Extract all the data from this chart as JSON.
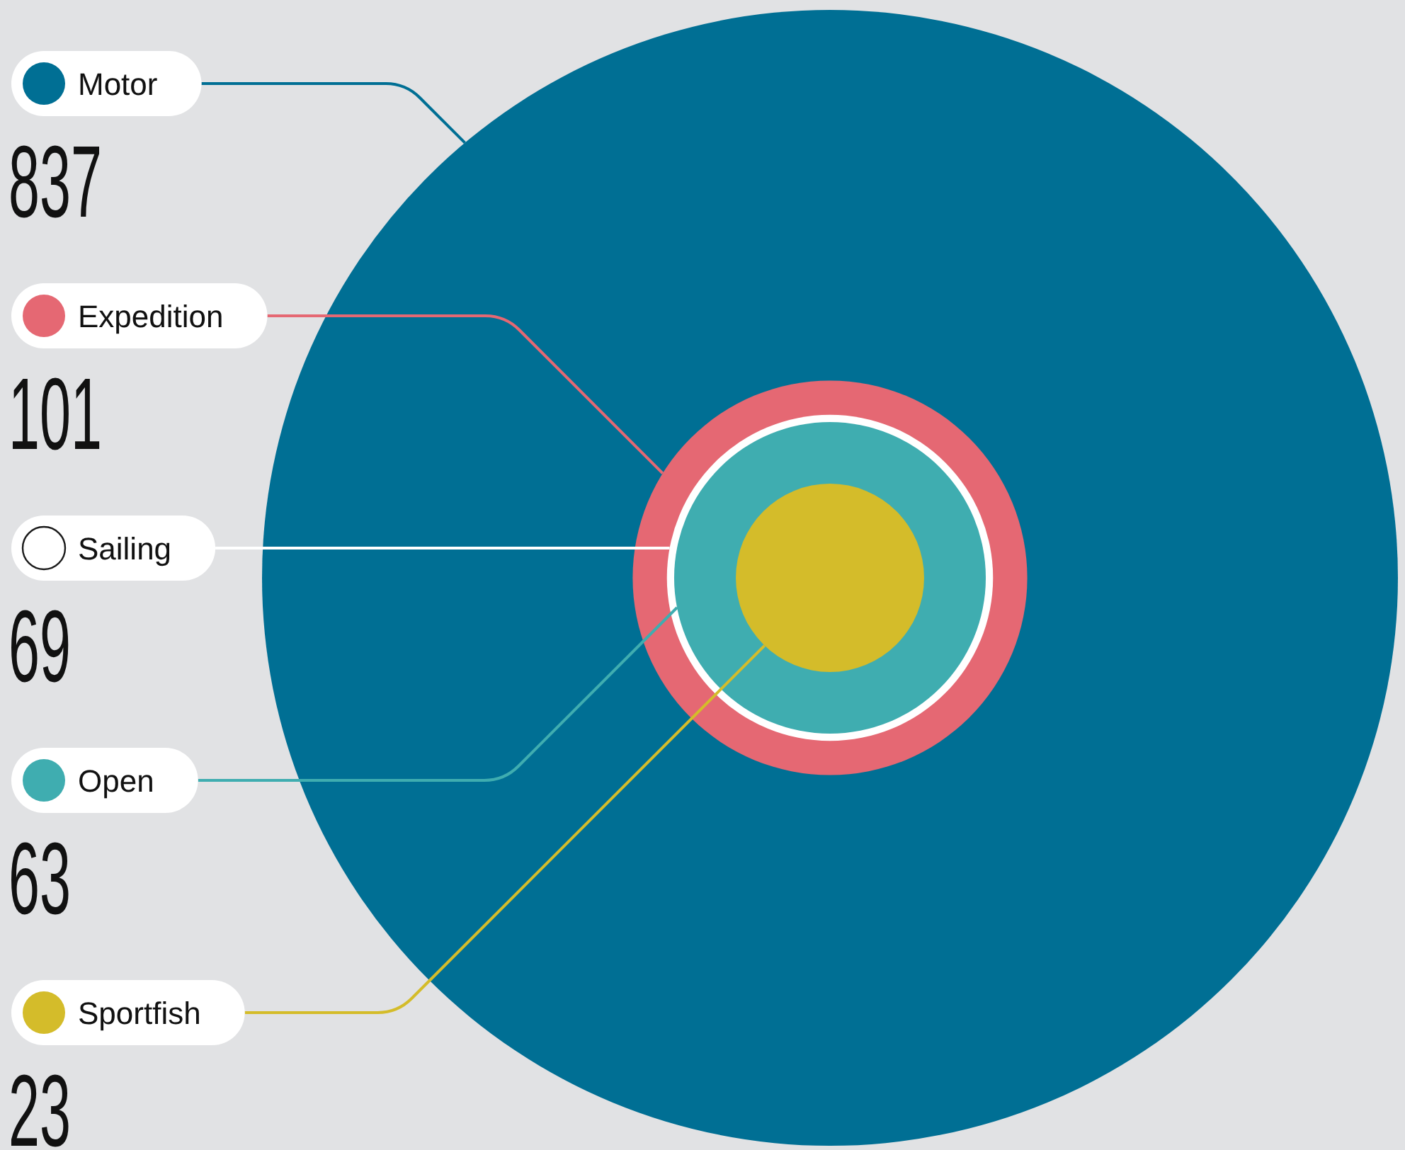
{
  "chart_data": {
    "type": "other",
    "data_labels": true,
    "categories": [
      "Motor",
      "Expedition",
      "Sailing",
      "Open",
      "Sportfish"
    ],
    "values": [
      837,
      101,
      69,
      63,
      23
    ],
    "colors": [
      "#006f94",
      "#e56873",
      "#ffffff",
      "#3fadb0",
      "#d4bc2a"
    ]
  }
}
